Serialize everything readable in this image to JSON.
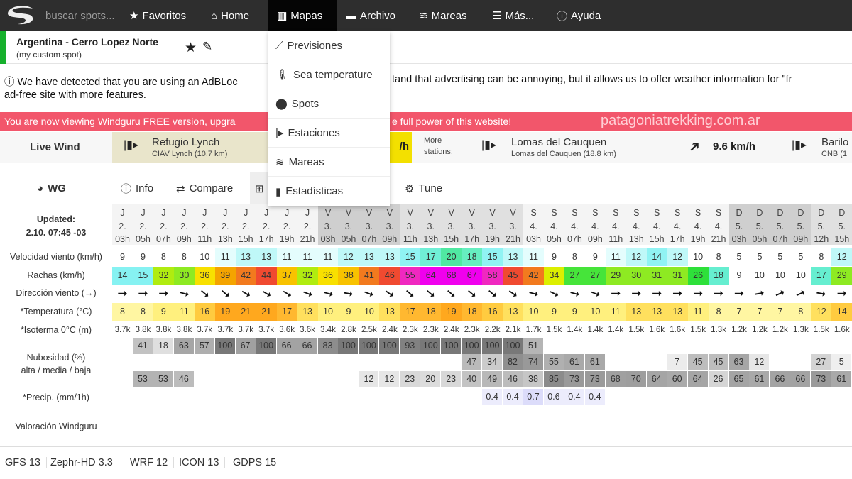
{
  "nav": {
    "search_placeholder": "buscar spots...",
    "items": [
      {
        "label": "Favoritos",
        "icon": "star-icon"
      },
      {
        "label": "Home",
        "icon": "home-icon"
      },
      {
        "label": "Mapas",
        "icon": "map-icon"
      },
      {
        "label": "Archivo",
        "icon": "archive-icon"
      },
      {
        "label": "Mareas",
        "icon": "tides-icon"
      },
      {
        "label": "Más...",
        "icon": "menu-icon"
      },
      {
        "label": "Ayuda",
        "icon": "help-icon"
      }
    ]
  },
  "spot": {
    "name": "Argentina - Cerro Lopez Norte",
    "subtitle": "(my custom spot)",
    "accent": "#16b02c"
  },
  "adblock": {
    "text_left": "We have detected that you are using an AdBLoc",
    "text_right": "tand that advertising can be annoying, but it allows us to offer weather information for \"fr",
    "line2": "ad-free site with more features."
  },
  "banner": {
    "text_left": "You are now viewing Windguru FREE version, upgra",
    "text_right": "e full power of this website!",
    "watermark": "patagoniatrekking.com.ar",
    "color": "#f2566b"
  },
  "live_wind": {
    "label": "Live Wind",
    "station1": {
      "name": "Refugio Lynch",
      "sub": "CIAV Lynch  (10.7 km)",
      "speed_fragment": "/h"
    },
    "more_label": "More stations:",
    "station2": {
      "name": "Lomas del Cauquen",
      "sub": "Lomas del Cauquen  (18.8 km)",
      "speed": "9.6 km/h"
    },
    "station3": {
      "name": "Barilo",
      "sub": "CNB  (1"
    }
  },
  "tabs": [
    {
      "label": "WG"
    },
    {
      "label": "Info"
    },
    {
      "label": "Compare"
    },
    {
      "label": ""
    },
    {
      "label": "Tune"
    }
  ],
  "mapas_menu": [
    {
      "label": "Previsiones",
      "icon": "forecast-icon"
    },
    {
      "label": "Sea temperature",
      "icon": "thermometer-icon"
    },
    {
      "label": "Spots",
      "icon": "location-pin-icon"
    },
    {
      "label": "Estaciones",
      "icon": "station-flag-icon"
    },
    {
      "label": "Mareas",
      "icon": "tides-icon"
    },
    {
      "label": "Estadísticas",
      "icon": "bar-chart-icon"
    }
  ],
  "forecast": {
    "updated_label": "Updated:",
    "updated_value": "2.10. 07:45 -03",
    "labels": {
      "wind": "Velocidad viento (km/h)",
      "gust": "Rachas (km/h)",
      "dir": "Dirección viento (→)",
      "temp": "*Temperatura (°C)",
      "iso": "*Isoterma 0°C (m)",
      "cloud1": "Nubosidad (%)",
      "cloud2": "alta / media / baja",
      "precip": "*Precip. (mm/1h)",
      "rating": "Valoración Windguru"
    },
    "days": [
      "J",
      "J",
      "J",
      "J",
      "J",
      "J",
      "J",
      "J",
      "J",
      "J",
      "V",
      "V",
      "V",
      "V",
      "V",
      "V",
      "V",
      "V",
      "V",
      "V",
      "S",
      "S",
      "S",
      "S",
      "S",
      "S",
      "S",
      "S",
      "S",
      "S",
      "D",
      "D",
      "D",
      "D",
      "D",
      "D"
    ],
    "dates": [
      "2.",
      "2.",
      "2.",
      "2.",
      "2.",
      "2.",
      "2.",
      "2.",
      "2.",
      "2.",
      "3.",
      "3.",
      "3.",
      "3.",
      "3.",
      "3.",
      "3.",
      "3.",
      "3.",
      "3.",
      "4.",
      "4.",
      "4.",
      "4.",
      "4.",
      "4.",
      "4.",
      "4.",
      "4.",
      "4.",
      "5.",
      "5.",
      "5.",
      "5.",
      "5.",
      "5."
    ],
    "hours": [
      "03h",
      "05h",
      "07h",
      "09h",
      "11h",
      "13h",
      "15h",
      "17h",
      "19h",
      "21h",
      "03h",
      "05h",
      "07h",
      "09h",
      "11h",
      "13h",
      "15h",
      "17h",
      "19h",
      "21h",
      "03h",
      "05h",
      "07h",
      "09h",
      "11h",
      "13h",
      "15h",
      "17h",
      "19h",
      "21h",
      "03h",
      "05h",
      "07h",
      "09h",
      "12h",
      "15h"
    ],
    "wind": [
      9,
      9,
      8,
      8,
      10,
      11,
      13,
      13,
      11,
      11,
      11,
      12,
      13,
      13,
      15,
      17,
      20,
      18,
      15,
      13,
      11,
      9,
      8,
      9,
      11,
      12,
      14,
      12,
      10,
      8,
      5,
      5,
      5,
      5,
      8,
      12
    ],
    "gust": [
      14,
      15,
      32,
      30,
      36,
      39,
      42,
      44,
      37,
      32,
      36,
      38,
      41,
      46,
      55,
      64,
      68,
      67,
      58,
      45,
      42,
      34,
      27,
      27,
      29,
      30,
      31,
      31,
      26,
      18,
      9,
      10,
      10,
      10,
      17,
      29
    ],
    "direction_deg": [
      270,
      270,
      270,
      285,
      310,
      310,
      300,
      300,
      300,
      290,
      285,
      280,
      290,
      305,
      310,
      310,
      310,
      310,
      310,
      305,
      285,
      295,
      285,
      290,
      270,
      270,
      270,
      270,
      270,
      270,
      270,
      260,
      245,
      245,
      280,
      270
    ],
    "temp": [
      8,
      8,
      9,
      11,
      16,
      19,
      21,
      21,
      17,
      13,
      10,
      9,
      10,
      13,
      17,
      18,
      19,
      18,
      16,
      13,
      10,
      9,
      9,
      10,
      11,
      13,
      13,
      13,
      11,
      8,
      7,
      7,
      7,
      8,
      12,
      14
    ],
    "iso": [
      "3.7k",
      "3.8k",
      "3.8k",
      "3.8k",
      "3.7k",
      "3.7k",
      "3.7k",
      "3.7k",
      "3.6k",
      "3.6k",
      "3.4k",
      "2.8k",
      "2.5k",
      "2.4k",
      "2.3k",
      "2.3k",
      "2.4k",
      "2.3k",
      "2.2k",
      "2.1k",
      "1.7k",
      "1.5k",
      "1.4k",
      "1.4k",
      "1.4k",
      "1.5k",
      "1.6k",
      "1.6k",
      "1.5k",
      "1.3k",
      "1.2k",
      "1.2k",
      "1.2k",
      "1.3k",
      "1.5k",
      "1.6k"
    ],
    "cloud_high": [
      null,
      41,
      18,
      63,
      57,
      100,
      67,
      100,
      66,
      66,
      83,
      100,
      100,
      100,
      93,
      100,
      100,
      100,
      100,
      100,
      51,
      null,
      null,
      null,
      null,
      null,
      null,
      null,
      null,
      null,
      null,
      null,
      null,
      null,
      null,
      null
    ],
    "cloud_mid": [
      null,
      null,
      null,
      null,
      null,
      null,
      null,
      null,
      null,
      null,
      null,
      null,
      null,
      null,
      null,
      null,
      null,
      47,
      34,
      82,
      74,
      55,
      61,
      61,
      null,
      null,
      null,
      7,
      45,
      45,
      63,
      12,
      null,
      null,
      27,
      5
    ],
    "cloud_low": [
      null,
      53,
      53,
      46,
      null,
      null,
      null,
      null,
      null,
      null,
      null,
      null,
      12,
      12,
      23,
      20,
      23,
      40,
      49,
      46,
      38,
      85,
      73,
      73,
      68,
      70,
      64,
      60,
      64,
      26,
      65,
      61,
      66,
      66,
      73,
      61
    ],
    "precip": [
      null,
      null,
      null,
      null,
      null,
      null,
      null,
      null,
      null,
      null,
      null,
      null,
      null,
      null,
      null,
      null,
      null,
      null,
      0.4,
      0.4,
      0.7,
      0.6,
      0.4,
      0.4,
      null,
      null,
      null,
      null,
      null,
      null,
      null,
      null,
      null,
      null,
      null,
      null
    ]
  },
  "models": [
    "GFS 13",
    "Zephr-HD 3.3",
    "WRF 12",
    "ICON 13",
    "GDPS 15"
  ]
}
